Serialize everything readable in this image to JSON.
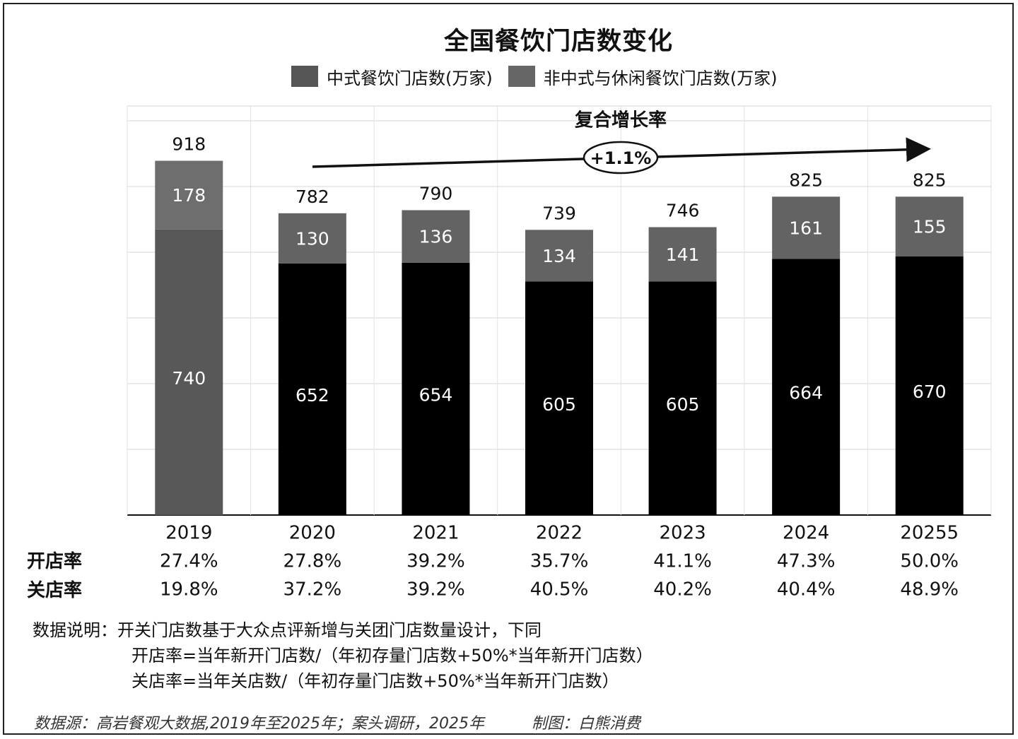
{
  "chart_data": {
    "type": "bar",
    "stacked": true,
    "title": "全国餐饮门店数变化",
    "categories": [
      "2019",
      "2020",
      "2021",
      "2022",
      "2023",
      "2024",
      "20255"
    ],
    "series": [
      {
        "name": "中式餐饮门店数(万家)",
        "values": [
          740,
          652,
          654,
          605,
          605,
          664,
          670
        ]
      },
      {
        "name": "非中式与休闲餐饮门店数(万家)",
        "values": [
          178,
          130,
          136,
          134,
          141,
          161,
          155
        ]
      }
    ],
    "totals": [
      918,
      782,
      790,
      739,
      746,
      825,
      825
    ],
    "annotation": {
      "heading": "复合增长率",
      "value": "+1.1%"
    },
    "ylim": [
      0,
      1060
    ],
    "grid": true,
    "legend_position": "top",
    "colors": {
      "chinese": "#000000",
      "non_chinese": "#636363",
      "first_chinese": "#585858",
      "first_non_chinese": "#6e6e6e"
    }
  },
  "rates": {
    "open_label": "开店率",
    "open": [
      "27.4%",
      "27.8%",
      "39.2%",
      "35.7%",
      "41.1%",
      "47.3%",
      "50.0%"
    ],
    "close_label": "关店率",
    "close": [
      "19.8%",
      "37.2%",
      "39.2%",
      "40.5%",
      "40.2%",
      "40.4%",
      "48.9%"
    ]
  },
  "notes": {
    "line1": "数据说明：开关门店数基于大众点评新增与关团门店数量设计，下同",
    "line2": "开店率=当年新开门店数/（年初存量门店数+50%*当年新开门店数）",
    "line3": "关店率=当年关店数/（年初存量门店数+50%*当年新开门店数）"
  },
  "source": {
    "text": "数据源：高岩餐观大数据,2019年至2025年；案头调研，2025年",
    "maker": "制图：白熊消费"
  }
}
